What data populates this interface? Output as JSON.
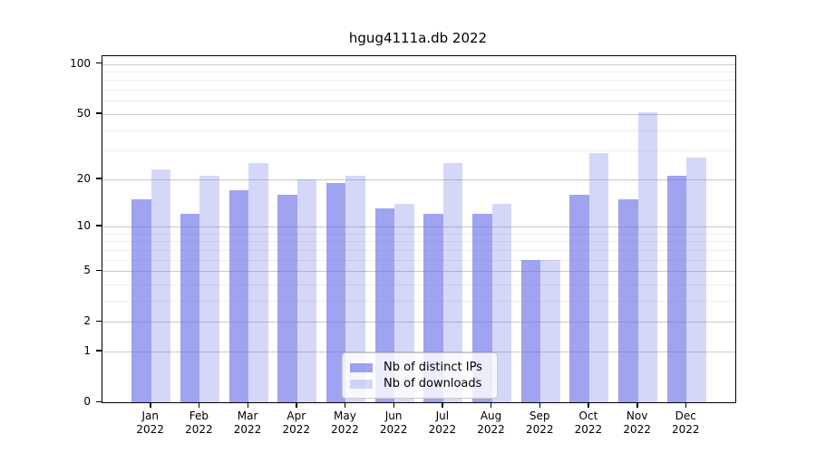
{
  "title": "hgug4111a.db 2022",
  "chart_data": {
    "type": "bar",
    "title": "hgug4111a.db 2022",
    "categories": [
      "Jan 2022",
      "Feb 2022",
      "Mar 2022",
      "Apr 2022",
      "May 2022",
      "Jun 2022",
      "Jul 2022",
      "Aug 2022",
      "Sep 2022",
      "Oct 2022",
      "Nov 2022",
      "Dec 2022"
    ],
    "series": [
      {
        "name": "Nb of distinct IPs",
        "color": "rgba(105,110,230,0.63)",
        "solid_color": "#a0a5ef",
        "values": [
          15,
          12,
          17,
          16,
          19,
          13,
          12,
          12,
          6,
          16,
          15,
          21
        ]
      },
      {
        "name": "Nb of downloads",
        "color": "rgba(105,110,230,0.28)",
        "solid_color": "#d9dbf8",
        "values": [
          23,
          21,
          25,
          20,
          21,
          14,
          25,
          14,
          6,
          29,
          51,
          27
        ]
      }
    ],
    "xlabel": "",
    "ylabel": "",
    "yscale": "log1p",
    "yticks": [
      0,
      1,
      2,
      5,
      10,
      20,
      50,
      100
    ],
    "minor_yticks": [
      3,
      4,
      6,
      7,
      8,
      9,
      30,
      40,
      60,
      70,
      80,
      90
    ],
    "ylim": [
      0,
      112
    ],
    "grid": true,
    "legend_position": "lower-center",
    "colors": {
      "axis": "#000000",
      "major_grid": "#c9c9c9",
      "minor_grid": "#ededed",
      "background": "#ffffff"
    }
  }
}
